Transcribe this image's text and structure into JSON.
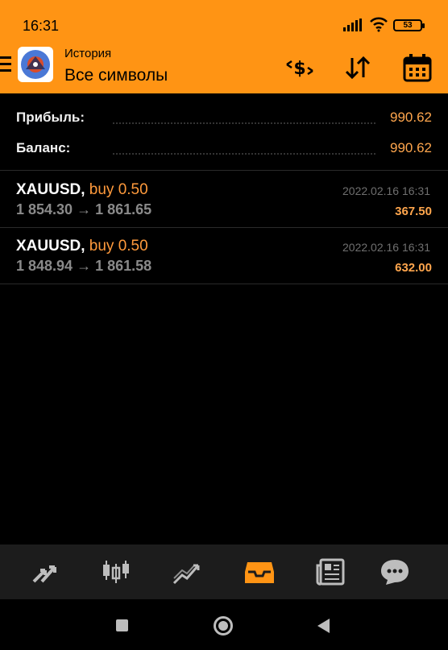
{
  "status_bar": {
    "time": "16:31",
    "battery": "53"
  },
  "header": {
    "title": "История",
    "subtitle": "Все символы"
  },
  "summary": {
    "profit_label": "Прибыль:",
    "profit_value": "990.62",
    "balance_label": "Баланс:",
    "balance_value": "990.62"
  },
  "trades": [
    {
      "symbol": "XAUUSD,",
      "side": "buy 0.50",
      "prices": "1 854.30 → 1 861.65",
      "time": "2022.02.16 16:31",
      "profit": "367.50"
    },
    {
      "symbol": "XAUUSD,",
      "side": "buy 0.50",
      "prices": "1 848.94 → 1 861.58",
      "time": "2022.02.16 16:31",
      "profit": "632.00"
    }
  ],
  "colors": {
    "accent": "#ff9414",
    "profit": "#ffa64d",
    "background": "#000000",
    "nav_bg": "#1c1c1c"
  },
  "icons": {
    "header": [
      "menu-icon",
      "currency-exchange-icon",
      "sort-icon",
      "calendar-icon"
    ],
    "bottom_nav": [
      "trade-arrows-icon",
      "candlestick-chart-icon",
      "quotes-icon",
      "history-inbox-icon",
      "news-icon",
      "chat-icon"
    ]
  }
}
